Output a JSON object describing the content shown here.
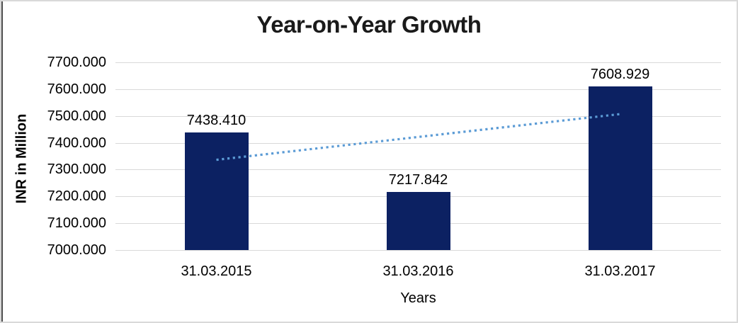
{
  "window": {
    "frame_border_color": "#d9d9d9",
    "left_edge_color": "#4f4f4f",
    "background": "#ffffff"
  },
  "chart_data": {
    "type": "bar",
    "title": "Year-on-Year Growth",
    "xlabel": "Years",
    "ylabel": "INR in Million",
    "categories": [
      "31.03.2015",
      "31.03.2016",
      "31.03.2017"
    ],
    "values": [
      7438.41,
      7217.842,
      7608.929
    ],
    "data_labels": [
      "7438.410",
      "7217.842",
      "7608.929"
    ],
    "ylim": [
      7000,
      7700
    ],
    "ytick_step": 100,
    "ytick_labels": [
      "7000.000",
      "7100.000",
      "7200.000",
      "7300.000",
      "7400.000",
      "7500.000",
      "7600.000",
      "7700.000"
    ],
    "grid": true,
    "legend": "none",
    "trendline": {
      "kind": "linear",
      "style": "dotted"
    },
    "colors": {
      "bar": "#0c2162",
      "trendline": "#5b9bd5",
      "gridline": "#d9d9d9",
      "title_text": "#1a1a1a",
      "axis_text": "#000000"
    }
  }
}
